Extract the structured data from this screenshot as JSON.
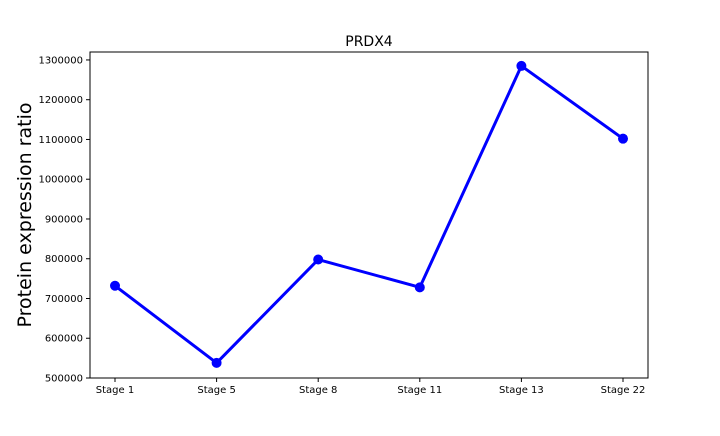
{
  "chart_data": {
    "type": "line",
    "title": "PRDX4",
    "xlabel": "",
    "ylabel": "Protein expression ratio",
    "categories": [
      "Stage 1",
      "Stage 5",
      "Stage 8",
      "Stage 11",
      "Stage 13",
      "Stage 22"
    ],
    "series": [
      {
        "values": [
          732000,
          538000,
          798000,
          728000,
          1285000,
          1102000
        ],
        "color": "#0000ff",
        "marker": "circle"
      }
    ],
    "ylim": [
      500000,
      1320000
    ],
    "yticks": [
      500000,
      600000,
      700000,
      800000,
      900000,
      1000000,
      1100000,
      1200000,
      1300000
    ],
    "grid": false,
    "legend": "none"
  }
}
